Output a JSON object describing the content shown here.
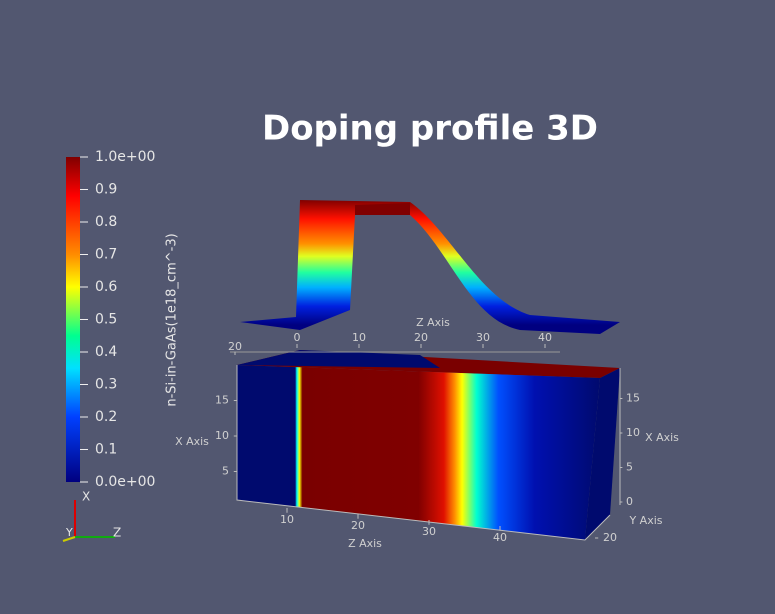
{
  "title": "Doping profile 3D",
  "colorbar": {
    "title": "n-Si-in-GaAs(1e18_cm^-3)",
    "ticks": [
      {
        "value": 1,
        "label": "1.0e+00"
      },
      0.9,
      0.8,
      0.7,
      0.6,
      0.5,
      0.4,
      0.3,
      0.2,
      0.1,
      {
        "value": 0,
        "label": "0.0e+00"
      }
    ]
  },
  "top_axes": {
    "z_label": "Z Axis",
    "z_ticks": [
      0,
      10,
      20,
      30,
      40
    ],
    "y_ticks": [
      20
    ]
  },
  "box_axes": {
    "x_label_left": "X Axis",
    "x_ticks_left": [
      15,
      10,
      5
    ],
    "x_label_right": "X Axis",
    "x_ticks_right": [
      15,
      10,
      5,
      0
    ],
    "z_label": "Z Axis",
    "z_ticks": [
      10,
      20,
      30,
      40
    ],
    "y_label": "Y Axis",
    "y_ticks": [
      20
    ]
  },
  "orientation": {
    "x": "X",
    "y": "Y",
    "z": "Z"
  }
}
